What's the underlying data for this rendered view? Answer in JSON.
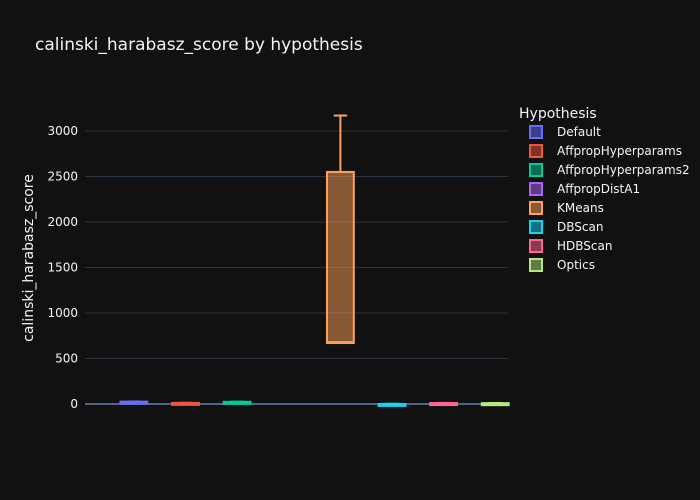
{
  "chart_data": {
    "type": "box",
    "title": "calinski_harabasz_score by hypothesis",
    "xlabel": "",
    "ylabel": "calinski_harabasz_score",
    "ylim": [
      -200,
      3400
    ],
    "yticks": [
      0,
      500,
      1000,
      1500,
      2000,
      2500,
      3000
    ],
    "grid": true,
    "legend_title": "Hypothesis",
    "legend_position": "right",
    "series": [
      {
        "name": "Default",
        "color": "#636efa",
        "min": 18,
        "q1": 20,
        "median": 22,
        "q3": 26,
        "max": 28
      },
      {
        "name": "AffpropHyperparams",
        "color": "#EF553B",
        "min": 5,
        "q1": 7,
        "median": 9,
        "q3": 12,
        "max": 14
      },
      {
        "name": "AffpropHyperparams2",
        "color": "#00cc96",
        "min": 14,
        "q1": 17,
        "median": 20,
        "q3": 24,
        "max": 26
      },
      {
        "name": "AffpropDistA1",
        "color": "#ab63fa",
        "min": null,
        "q1": null,
        "median": null,
        "q3": null,
        "max": null
      },
      {
        "name": "KMeans",
        "color": "#FFA15A",
        "min": 660,
        "q1": 670,
        "median": 680,
        "q3": 2550,
        "max": 3170
      },
      {
        "name": "DBScan",
        "color": "#19d3f3",
        "min": -5,
        "q1": -3,
        "median": -1,
        "q3": 1,
        "max": 3
      },
      {
        "name": "HDBScan",
        "color": "#FF6692",
        "min": 4,
        "q1": 6,
        "median": 8,
        "q3": 10,
        "max": 12
      },
      {
        "name": "Optics",
        "color": "#B6E880",
        "min": 3,
        "q1": 5,
        "median": 7,
        "q3": 9,
        "max": 11
      }
    ]
  }
}
